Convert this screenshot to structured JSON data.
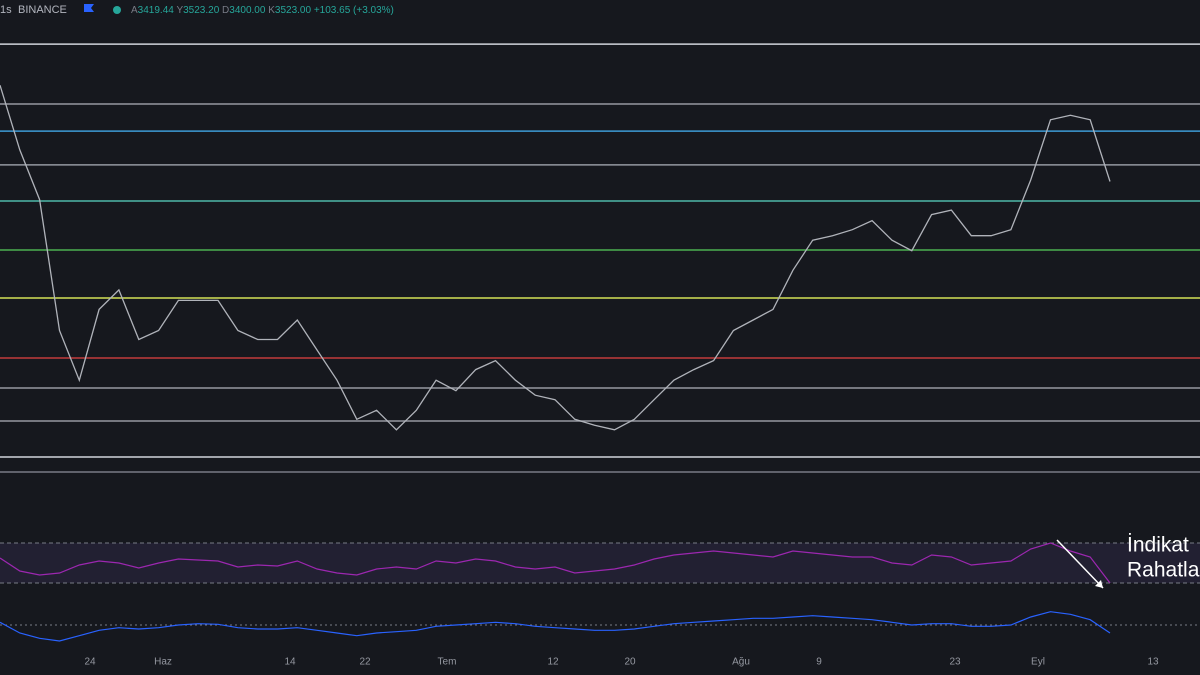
{
  "header": {
    "interval": "1s",
    "exchange": "BINANCE",
    "ohlc": [
      {
        "label": "A",
        "value": "3419.44"
      },
      {
        "label": "Y",
        "value": "3523.20"
      },
      {
        "label": "D",
        "value": "3400.00"
      },
      {
        "label": "K",
        "value": "3523.00"
      }
    ],
    "change": "+103.65 (+3.03%)"
  },
  "chart_data": {
    "type": "line",
    "color": "#b0b3ba",
    "ylim": [
      1570,
      4460
    ],
    "values": [
      4160,
      3730,
      3400,
      2530,
      2200,
      2670,
      2800,
      2470,
      2530,
      2730,
      2730,
      2730,
      2530,
      2470,
      2470,
      2600,
      2400,
      2200,
      1940,
      2000,
      1870,
      2000,
      2200,
      2130,
      2270,
      2330,
      2200,
      2100,
      2070,
      1940,
      1900,
      1870,
      1940,
      2070,
      2200,
      2270,
      2330,
      2530,
      2600,
      2670,
      2930,
      3130,
      3160,
      3200,
      3260,
      3130,
      3060,
      3300,
      3330,
      3160,
      3160,
      3200,
      3530,
      3930,
      3960,
      3930,
      3520
    ],
    "levels": [
      {
        "value": 4433,
        "color": "#d1d4dc"
      },
      {
        "value": 4035,
        "color": "#9598a1"
      },
      {
        "value": 3855,
        "color": "#3d9bd6"
      },
      {
        "value": 3630,
        "color": "#9598a1"
      },
      {
        "value": 3390,
        "color": "#4fb8a8"
      },
      {
        "value": 3065,
        "color": "#4caf50"
      },
      {
        "value": 2746,
        "color": "#d4e157"
      },
      {
        "value": 2347,
        "color": "#c23b3b"
      },
      {
        "value": 2148,
        "color": "#9598a1"
      },
      {
        "value": 1929,
        "color": "#9598a1"
      },
      {
        "value": 1690,
        "color": "#d1d4dc"
      },
      {
        "value": 1590,
        "color": "#787b86"
      }
    ]
  },
  "rsi": {
    "color": "#9c27b0",
    "ylim": [
      17,
      83
    ],
    "bands": [
      30,
      70
    ],
    "values": [
      55,
      42,
      38,
      40,
      48,
      52,
      50,
      45,
      50,
      54,
      53,
      52,
      46,
      48,
      47,
      52,
      44,
      40,
      38,
      44,
      46,
      44,
      52,
      50,
      54,
      52,
      46,
      44,
      46,
      40,
      42,
      44,
      48,
      54,
      58,
      60,
      62,
      60,
      58,
      56,
      62,
      60,
      58,
      56,
      56,
      50,
      48,
      58,
      56,
      48,
      50,
      52,
      64,
      70,
      62,
      56,
      30
    ]
  },
  "macd": {
    "color": "#2962ff",
    "ylim": [
      -150,
      150
    ],
    "zero": 0,
    "values": [
      20,
      -60,
      -100,
      -120,
      -80,
      -40,
      -20,
      -30,
      -20,
      0,
      10,
      5,
      -20,
      -30,
      -30,
      -20,
      -40,
      -60,
      -80,
      -60,
      -50,
      -40,
      -10,
      0,
      10,
      20,
      10,
      -10,
      -20,
      -30,
      -40,
      -40,
      -30,
      -10,
      10,
      20,
      30,
      40,
      50,
      50,
      60,
      70,
      60,
      50,
      40,
      20,
      0,
      10,
      10,
      -10,
      -10,
      0,
      60,
      100,
      80,
      40,
      -60
    ]
  },
  "time_axis": [
    "24",
    "Haz",
    "14",
    "22",
    "Tem",
    "12",
    "20",
    "Ağu",
    "9",
    "23",
    "Eyl",
    "13"
  ],
  "annotation": {
    "lines": [
      "İndikat",
      "Rahatla"
    ]
  }
}
